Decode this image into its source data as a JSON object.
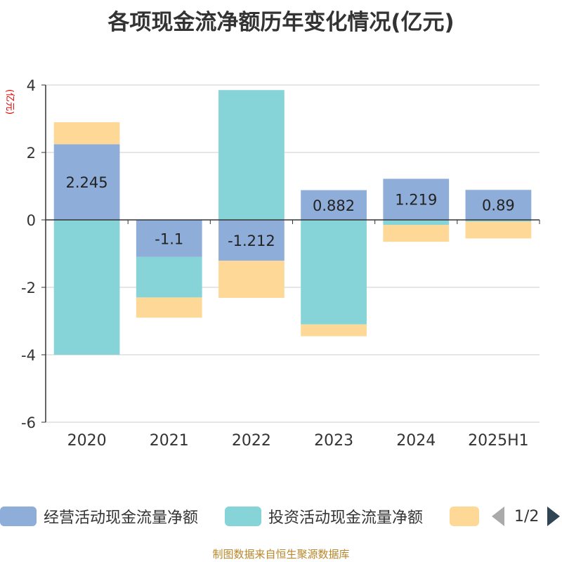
{
  "chart_data": {
    "type": "bar",
    "stacked": true,
    "title": "各项现金流净额历年变化情况(亿元)",
    "ylabel": "(亿元)",
    "categories": [
      "2020",
      "2021",
      "2022",
      "2023",
      "2024",
      "2025H1"
    ],
    "ylim": [
      -6,
      4
    ],
    "yticks": [
      4,
      2,
      0,
      -2,
      -4,
      -6
    ],
    "grid": true,
    "legend_position": "bottom",
    "series": [
      {
        "name": "经营活动现金流量净额",
        "color": "#8eadd8",
        "values": [
          2.245,
          -1.1,
          -1.212,
          0.882,
          1.219,
          0.89
        ],
        "show_labels": true
      },
      {
        "name": "投资活动现金流量净额",
        "color": "#86d4d8",
        "values": [
          -4.0,
          -1.2,
          3.85,
          -3.1,
          -0.15,
          -0.05
        ],
        "show_labels": false
      },
      {
        "name": "",
        "color": "#fed897",
        "values": [
          0.65,
          -0.6,
          -1.1,
          -0.35,
          -0.5,
          -0.5
        ],
        "show_labels": false
      }
    ]
  },
  "legend": {
    "page_indicator": "1/2"
  },
  "source_note": "制图数据来自恒生聚源数据库"
}
